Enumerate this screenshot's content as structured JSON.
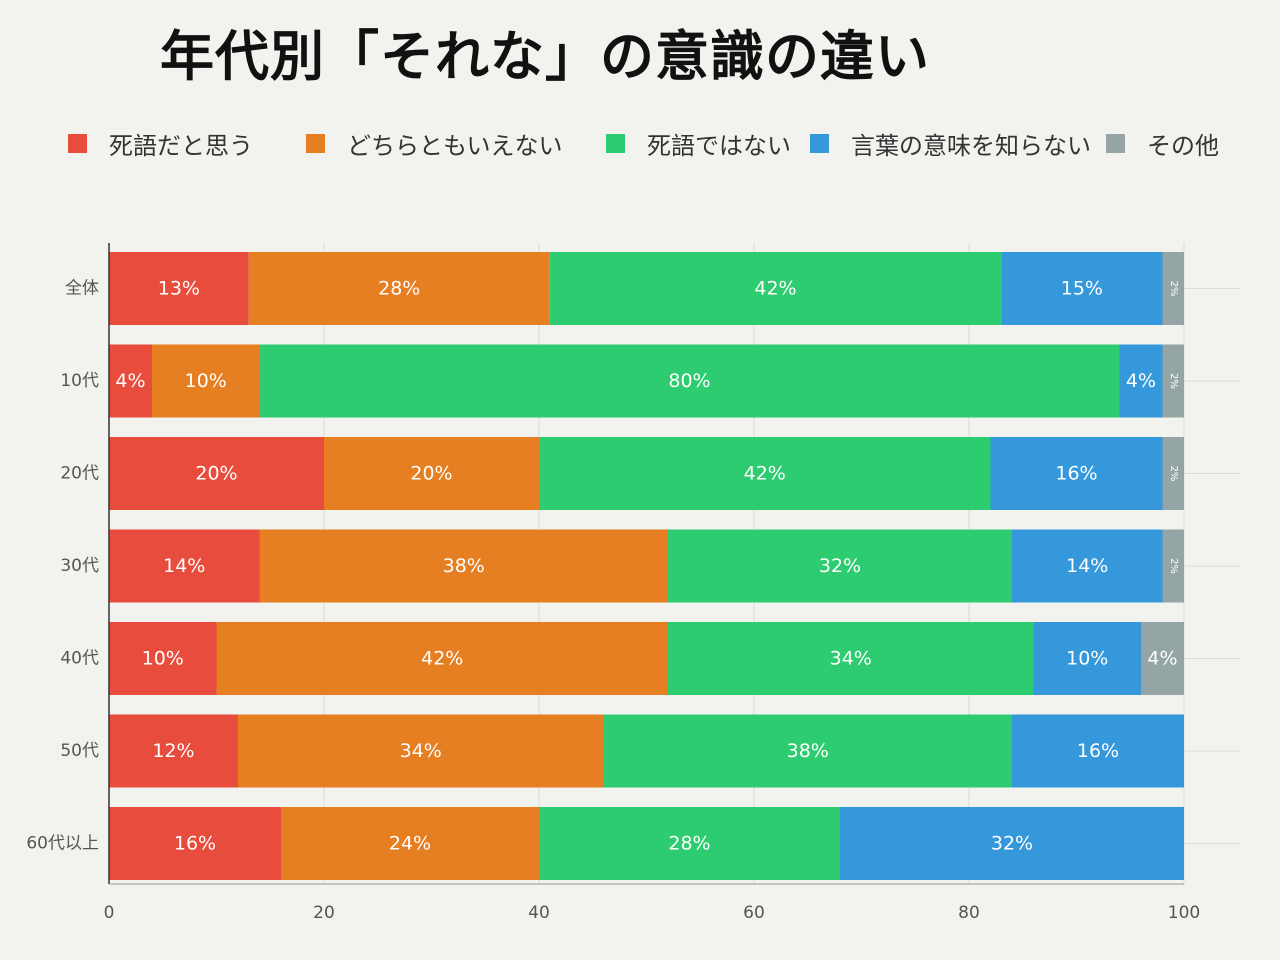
{
  "chart_data": {
    "type": "bar",
    "orientation": "horizontal",
    "stacked": true,
    "title": "年代別「それな」の意識の違い",
    "categories": [
      "全体",
      "10代",
      "20代",
      "30代",
      "40代",
      "50代",
      "60代以上"
    ],
    "series": [
      {
        "name": "死語だと思う",
        "color": "#e74c3c",
        "values": [
          13,
          4,
          20,
          14,
          10,
          12,
          16
        ]
      },
      {
        "name": "どちらともいえない",
        "color": "#e67e22",
        "values": [
          28,
          10,
          20,
          38,
          42,
          34,
          24
        ]
      },
      {
        "name": "死語ではない",
        "color": "#2ecc71",
        "values": [
          42,
          80,
          42,
          32,
          34,
          38,
          28
        ]
      },
      {
        "name": "言葉の意味を知らない",
        "color": "#3498db",
        "values": [
          15,
          4,
          16,
          14,
          10,
          16,
          32
        ]
      },
      {
        "name": "その他",
        "color": "#95a5a6",
        "values": [
          2,
          2,
          2,
          2,
          4,
          0,
          0
        ]
      }
    ],
    "xlim": [
      0,
      100
    ],
    "xticks": [
      0,
      20,
      40,
      60,
      80,
      100
    ],
    "value_suffix": "%",
    "legend_position": "top",
    "grid": true
  }
}
